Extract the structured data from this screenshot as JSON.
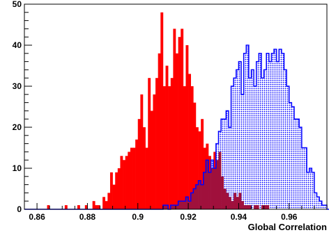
{
  "chart_data": {
    "type": "histogram",
    "xlabel": "Global Correlation",
    "ylabel": "",
    "xlim": [
      0.855,
      0.975
    ],
    "ylim": [
      0,
      50
    ],
    "bin_width": 0.001,
    "x_ticks": [
      0.86,
      0.88,
      0.9,
      0.92,
      0.94,
      0.96
    ],
    "x_tick_labels": [
      "0.86",
      "0.88",
      "0.9",
      "0.92",
      "0.94",
      "0.96"
    ],
    "y_ticks": [
      0,
      10,
      20,
      30,
      40,
      50
    ],
    "y_tick_labels": [
      "0",
      "10",
      "20",
      "30",
      "40",
      "50"
    ],
    "grid": false,
    "legend": "none",
    "series": [
      {
        "style": "filled",
        "color": "#ff0000",
        "x_start": 0.855,
        "counts": [
          0,
          0,
          0,
          0,
          0,
          0,
          0,
          0,
          0,
          1,
          0,
          0,
          0,
          0,
          0,
          0,
          1,
          0,
          0,
          0,
          0,
          1,
          0,
          0,
          1,
          0,
          0,
          2,
          1,
          1,
          0,
          3,
          2,
          4,
          9,
          6,
          9,
          10,
          13,
          12,
          13,
          14,
          15,
          15,
          17,
          22,
          28,
          20,
          15,
          32,
          24,
          28,
          32,
          38,
          48,
          30,
          35,
          30,
          32,
          44,
          38,
          42,
          44,
          30,
          40,
          33,
          30,
          26,
          20,
          19,
          22,
          15,
          16,
          13,
          10,
          14,
          12,
          14,
          8,
          5,
          4,
          3,
          2,
          4,
          3,
          4,
          2,
          1,
          1,
          1,
          0,
          1,
          1,
          0,
          1,
          1,
          1,
          0,
          0,
          0,
          0,
          0,
          0,
          0,
          0,
          0,
          0,
          0,
          0,
          0,
          0,
          0,
          0,
          0,
          0,
          0,
          0,
          0,
          0
        ]
      },
      {
        "style": "hatched",
        "color": "#0000ff",
        "x_start": 0.855,
        "counts": [
          0,
          0,
          0,
          0,
          0,
          0,
          0,
          0,
          0,
          0,
          0,
          0,
          0,
          0,
          0,
          0,
          0,
          0,
          0,
          0,
          0,
          0,
          0,
          0,
          0,
          0,
          0,
          0,
          0,
          0,
          0,
          0,
          0,
          0,
          0,
          0,
          0,
          0,
          0,
          0,
          0,
          0,
          0,
          0,
          0,
          0,
          0,
          0,
          0,
          0,
          0,
          0,
          0,
          0,
          0,
          1,
          1,
          0,
          1,
          1,
          1,
          2,
          2,
          2,
          3,
          2,
          4,
          5,
          6,
          7,
          6,
          9,
          12,
          9,
          12,
          10,
          16,
          19,
          22,
          22,
          24,
          20,
          30,
          32,
          34,
          36,
          28,
          38,
          40,
          32,
          34,
          30,
          36,
          38,
          32,
          34,
          38,
          36,
          38,
          39,
          36,
          39,
          38,
          34,
          30,
          26,
          25,
          22,
          22,
          20,
          15,
          15,
          9,
          10,
          9,
          4,
          3,
          2,
          1,
          1,
          0,
          0,
          0
        ]
      }
    ]
  },
  "colors": {
    "red_fill": "#ff0000",
    "blue_line": "#0000ff",
    "overlap_fill": "#a0103c"
  }
}
